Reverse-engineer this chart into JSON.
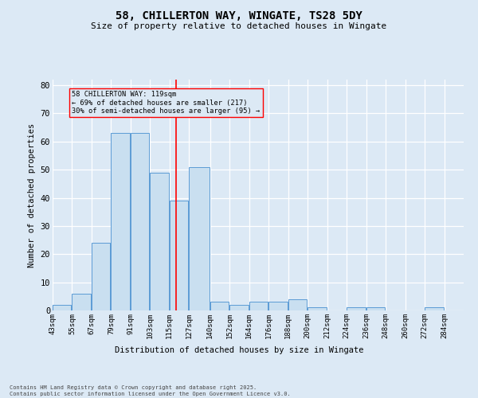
{
  "title": "58, CHILLERTON WAY, WINGATE, TS28 5DY",
  "subtitle": "Size of property relative to detached houses in Wingate",
  "xlabel": "Distribution of detached houses by size in Wingate",
  "ylabel": "Number of detached properties",
  "footnote": "Contains HM Land Registry data © Crown copyright and database right 2025.\nContains public sector information licensed under the Open Government Licence v3.0.",
  "bar_color": "#c9dff0",
  "bar_edge_color": "#5b9bd5",
  "background_color": "#dce9f5",
  "annotation_text": "58 CHILLERTON WAY: 119sqm\n← 69% of detached houses are smaller (217)\n30% of semi-detached houses are larger (95) →",
  "property_value": 119,
  "bin_edges": [
    43,
    55,
    67,
    79,
    91,
    103,
    115,
    127,
    140,
    152,
    164,
    176,
    188,
    200,
    212,
    224,
    236,
    248,
    260,
    272,
    284,
    296
  ],
  "counts": [
    2,
    6,
    24,
    63,
    63,
    49,
    39,
    51,
    3,
    2,
    3,
    3,
    4,
    1,
    0,
    1,
    1,
    0,
    0,
    1,
    0
  ],
  "tick_labels": [
    "43sqm",
    "55sqm",
    "67sqm",
    "79sqm",
    "91sqm",
    "103sqm",
    "115sqm",
    "127sqm",
    "140sqm",
    "152sqm",
    "164sqm",
    "176sqm",
    "188sqm",
    "200sqm",
    "212sqm",
    "224sqm",
    "236sqm",
    "248sqm",
    "260sqm",
    "272sqm",
    "284sqm"
  ],
  "ylim": [
    0,
    82
  ],
  "yticks": [
    0,
    10,
    20,
    30,
    40,
    50,
    60,
    70,
    80
  ],
  "red_line_x": 119,
  "figsize": [
    6.0,
    5.0
  ],
  "dpi": 100
}
